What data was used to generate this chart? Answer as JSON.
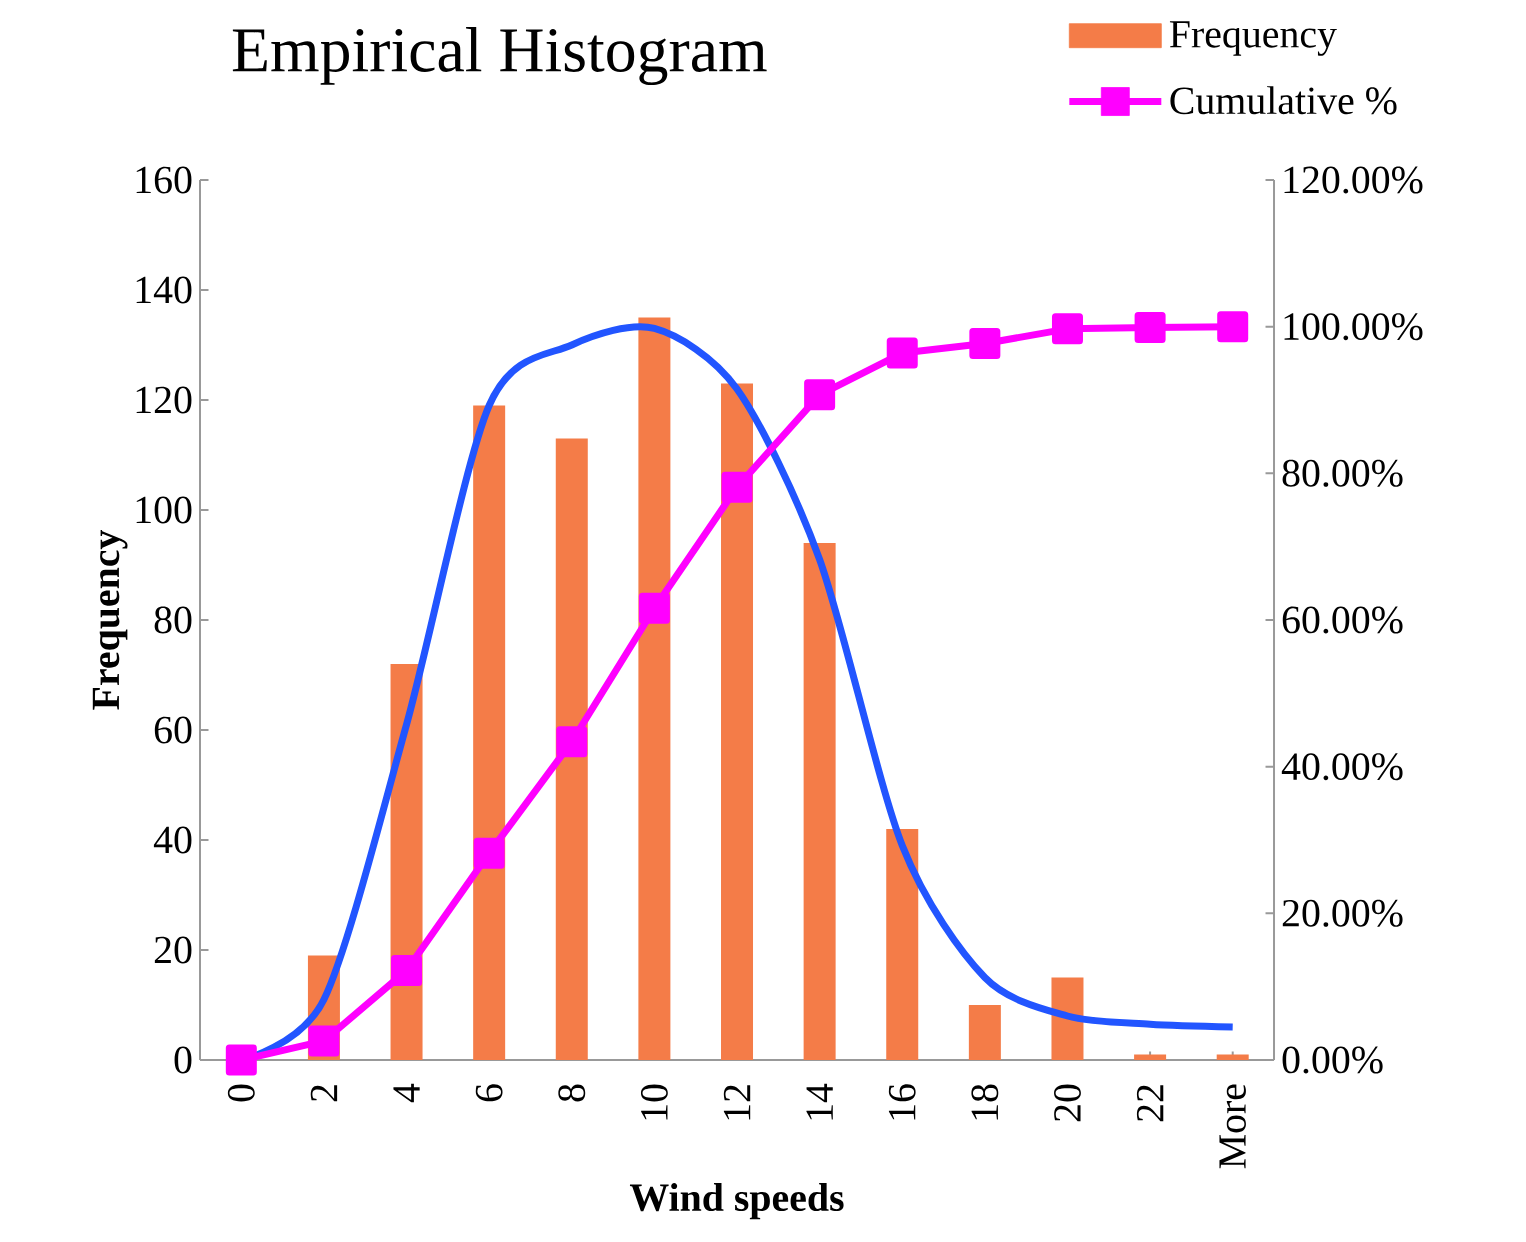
{
  "chart_data": {
    "type": "bar",
    "title": "Empirical Histogram",
    "xlabel": "Wind speeds",
    "ylabel": "Frequency",
    "categories": [
      "0",
      "2",
      "4",
      "6",
      "8",
      "10",
      "12",
      "14",
      "16",
      "18",
      "20",
      "22",
      "More"
    ],
    "series": [
      {
        "name": "Frequency",
        "color": "#f47c48",
        "values": [
          0,
          19,
          72,
          119,
          113,
          135,
          123,
          94,
          42,
          10,
          15,
          1,
          1
        ]
      },
      {
        "name": "Cumulative %",
        "type": "line",
        "axis": "y2",
        "marker": "square",
        "color": "#ff00ff",
        "values": [
          0,
          2.6,
          12.2,
          28.2,
          43.4,
          61.6,
          78.1,
          90.7,
          96.4,
          97.7,
          99.7,
          99.9,
          100
        ]
      },
      {
        "type": "line",
        "marker": "none",
        "color": "#2255ff",
        "values": [
          0,
          11,
          61,
          119,
          130,
          133,
          122,
          91,
          39,
          15,
          8,
          6.5,
          6
        ]
      }
    ],
    "ylim": [
      0,
      160
    ],
    "yticks": [
      0,
      20,
      40,
      60,
      80,
      100,
      120,
      140,
      160
    ],
    "y2lim": [
      0,
      120
    ],
    "y2ticks": [
      {
        "value": 0,
        "label": "0.00%"
      },
      {
        "value": 20,
        "label": "20.00%"
      },
      {
        "value": 40,
        "label": "40.00%"
      },
      {
        "value": 60,
        "label": "60.00%"
      },
      {
        "value": 80,
        "label": "80.00%"
      },
      {
        "value": 100,
        "label": "100.00%"
      },
      {
        "value": 120,
        "label": "120.00%"
      }
    ],
    "legend": "top right"
  }
}
